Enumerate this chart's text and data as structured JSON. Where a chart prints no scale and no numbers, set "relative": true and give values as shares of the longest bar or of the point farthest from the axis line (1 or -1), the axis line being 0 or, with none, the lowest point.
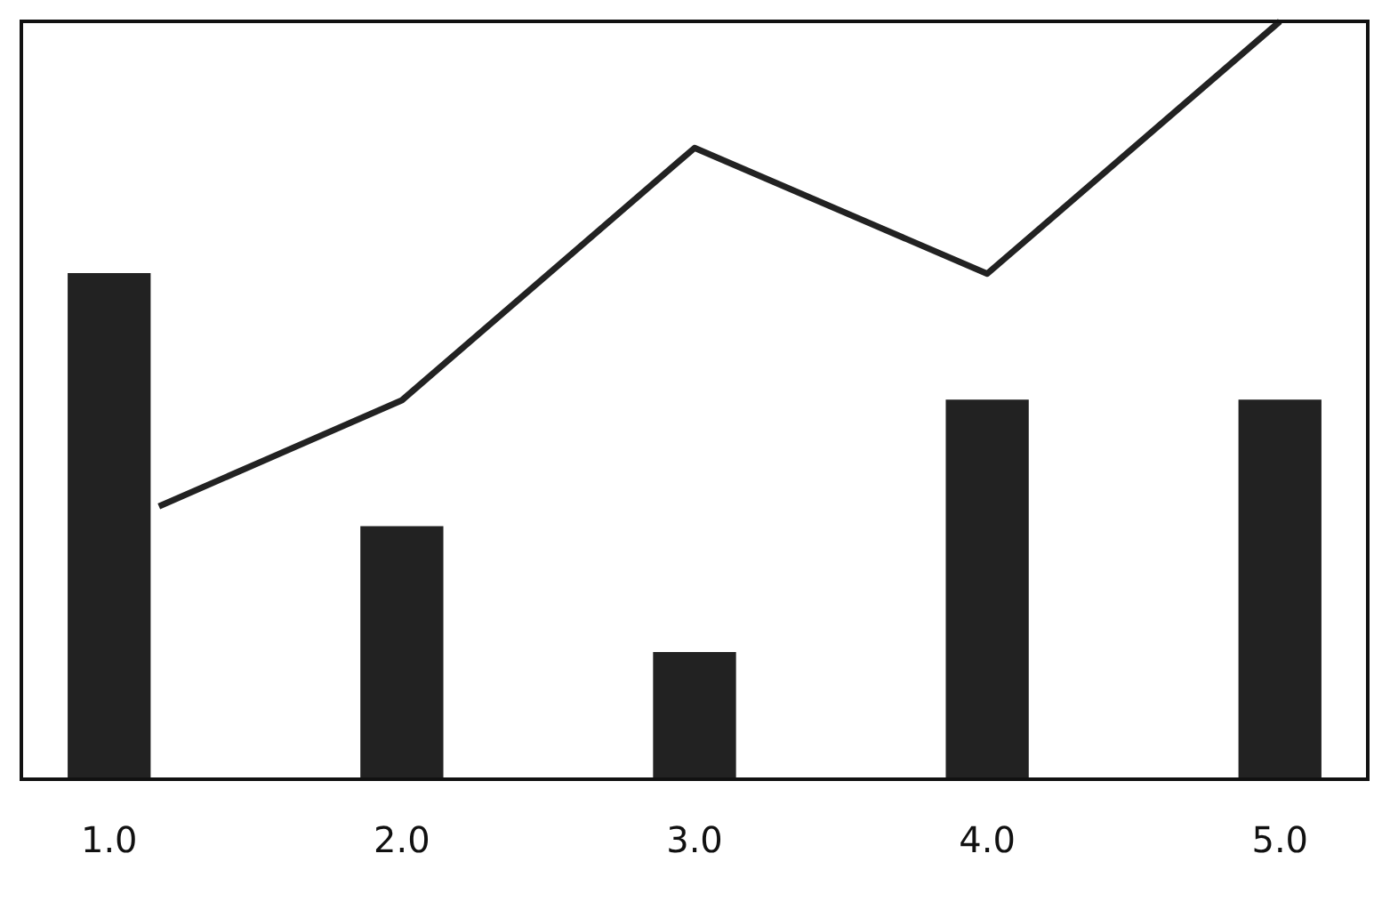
{
  "chart_data": {
    "type": "bar",
    "relative": true,
    "x": [
      1,
      2,
      3,
      4,
      5
    ],
    "xlim": [
      0.7,
      5.3
    ],
    "xticks": [
      {
        "value": 1,
        "label": "1.0"
      },
      {
        "value": 2,
        "label": "2.0"
      },
      {
        "value": 3,
        "label": "3.0"
      },
      {
        "value": 4,
        "label": "4.0"
      },
      {
        "value": 5,
        "label": "5.0"
      }
    ],
    "series": [
      {
        "color": "#222222",
        "values": [
          0.667,
          0.333,
          0.167,
          0.5,
          0.5
        ]
      },
      {
        "type": "line",
        "color": "#222222",
        "x": [
          1.17,
          2,
          3,
          4,
          5
        ],
        "values": [
          0.36,
          0.5,
          0.833,
          0.667,
          1
        ]
      }
    ],
    "grid": false,
    "legend": false,
    "marker": "none"
  }
}
